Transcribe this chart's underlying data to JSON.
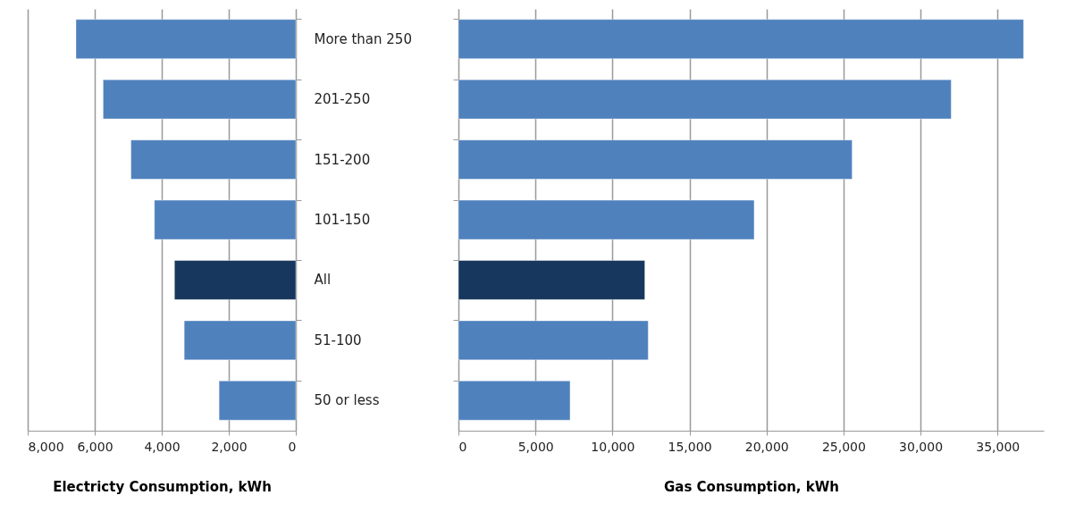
{
  "chart_data": [
    {
      "type": "bar",
      "orientation": "horizontal",
      "categories": [
        "More than 250",
        "201-250",
        "151-200",
        "101-150",
        "All",
        "51-100",
        "50 or less"
      ],
      "values": [
        6560,
        5750,
        4920,
        4220,
        3620,
        3330,
        2290
      ],
      "colors": [
        "#4f81bd",
        "#4f81bd",
        "#4f81bd",
        "#4f81bd",
        "#17375e",
        "#4f81bd",
        "#4f81bd"
      ],
      "xlim": [
        8000,
        0
      ],
      "xticks": [
        {
          "value": 8000,
          "label": "8,000"
        },
        {
          "value": 6000,
          "label": "6,000"
        },
        {
          "value": 4000,
          "label": "4,000"
        },
        {
          "value": 2000,
          "label": "2,000"
        },
        0
      ],
      "xlabel": "Electricty Consumption, kWh",
      "grid": "x"
    },
    {
      "type": "bar",
      "orientation": "horizontal",
      "categories": [
        null,
        null,
        null,
        null,
        null,
        null,
        null
      ],
      "values": [
        36690,
        31990,
        25560,
        19200,
        12100,
        12320,
        7250
      ],
      "colors": [
        "#4f81bd",
        "#4f81bd",
        "#4f81bd",
        "#4f81bd",
        "#17375e",
        "#4f81bd",
        "#4f81bd"
      ],
      "xlim": [
        0,
        38000
      ],
      "xticks": [
        0,
        {
          "value": 5000,
          "label": "5,000"
        },
        {
          "value": 10000,
          "label": "10,000"
        },
        {
          "value": 15000,
          "label": "15,000"
        },
        {
          "value": 20000,
          "label": "20,000"
        },
        {
          "value": 25000,
          "label": "25,000"
        },
        {
          "value": 30000,
          "label": "30,000"
        },
        {
          "value": 35000,
          "label": "35,000"
        }
      ],
      "xlabel": "Gas Consumption, kWh",
      "grid": "x",
      "tick_labels": "x"
    }
  ]
}
